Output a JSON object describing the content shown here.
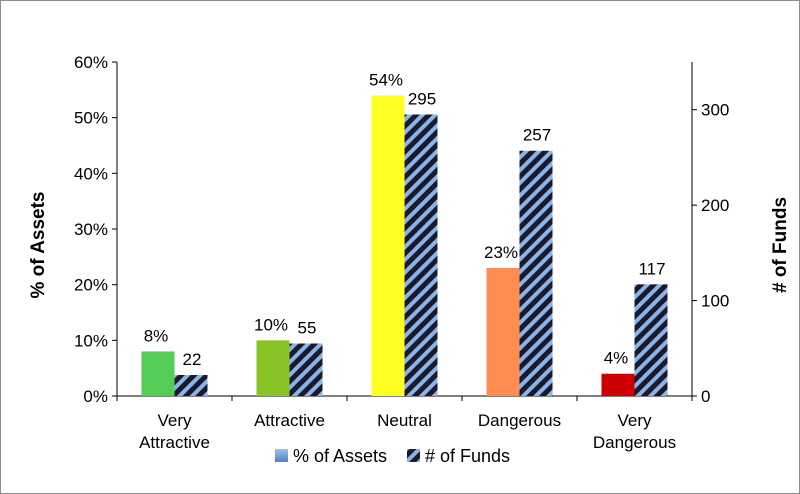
{
  "chart_data": {
    "type": "bar",
    "categories": [
      [
        "Very",
        "Attractive"
      ],
      [
        "Attractive"
      ],
      [
        "Neutral"
      ],
      [
        "Dangerous"
      ],
      [
        "Very",
        "Dangerous"
      ]
    ],
    "series": [
      {
        "name": "% of Assets",
        "axis": "left",
        "values": [
          8,
          10,
          54,
          23,
          4
        ],
        "labels": [
          "8%",
          "10%",
          "54%",
          "23%",
          "4%"
        ],
        "colors": [
          "#55cc55",
          "#88c425",
          "#ffff22",
          "#ff8c50",
          "#cc0000"
        ]
      },
      {
        "name": "# of Funds",
        "axis": "right",
        "values": [
          22,
          55,
          295,
          257,
          117
        ],
        "labels": [
          "22",
          "55",
          "295",
          "257",
          "117"
        ],
        "pattern": "hatched",
        "colors": [
          "#1a1a2e",
          "#8ab4e8"
        ]
      }
    ],
    "ylabel": "% of Assets",
    "y2label": "# of Funds",
    "ylim": [
      0,
      60
    ],
    "y2lim": [
      0,
      350
    ],
    "yticks": [
      "0%",
      "10%",
      "20%",
      "30%",
      "40%",
      "50%",
      "60%"
    ],
    "y2ticks": [
      "0",
      "100",
      "200",
      "300"
    ],
    "grid": false,
    "legend": "bottom"
  }
}
